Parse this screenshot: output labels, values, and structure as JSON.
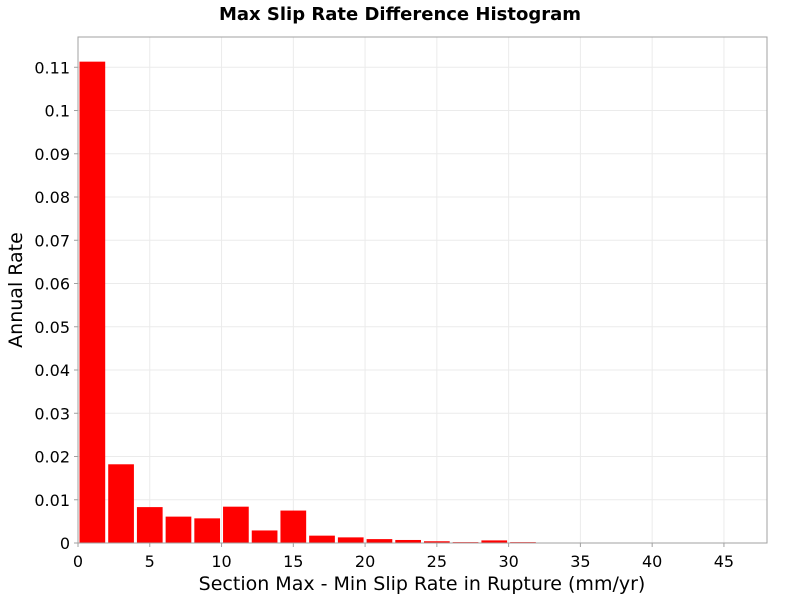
{
  "chart_data": {
    "type": "bar",
    "title": "Max Slip Rate Difference Histogram",
    "xlabel": "Section Max - Min Slip Rate in Rupture (mm/yr)",
    "ylabel": "Annual Rate",
    "xlim": [
      0,
      48
    ],
    "ylim": [
      0,
      0.117
    ],
    "bin_width": 2,
    "x_ticks": [
      "0",
      "5",
      "10",
      "15",
      "20",
      "25",
      "30",
      "35",
      "40",
      "45"
    ],
    "y_ticks": [
      "0",
      "0.01",
      "0.02",
      "0.03",
      "0.04",
      "0.05",
      "0.06",
      "0.07",
      "0.08",
      "0.09",
      "0.1",
      "0.11"
    ],
    "x": [
      1,
      3,
      5,
      7,
      9,
      11,
      13,
      15,
      17,
      19,
      21,
      23,
      25,
      27,
      29,
      31,
      33,
      35,
      37,
      39,
      41,
      43,
      45,
      47
    ],
    "values": [
      0.1113,
      0.0182,
      0.0083,
      0.0061,
      0.0057,
      0.0084,
      0.0029,
      0.0075,
      0.0017,
      0.0013,
      0.0009,
      0.0007,
      0.0004,
      0.0002,
      0.0006,
      0.0002,
      5e-05,
      5e-05,
      3e-05,
      3e-05,
      2e-05,
      2e-05,
      1e-05,
      1e-05
    ],
    "bar_color": "#ff0000",
    "grid": true
  }
}
